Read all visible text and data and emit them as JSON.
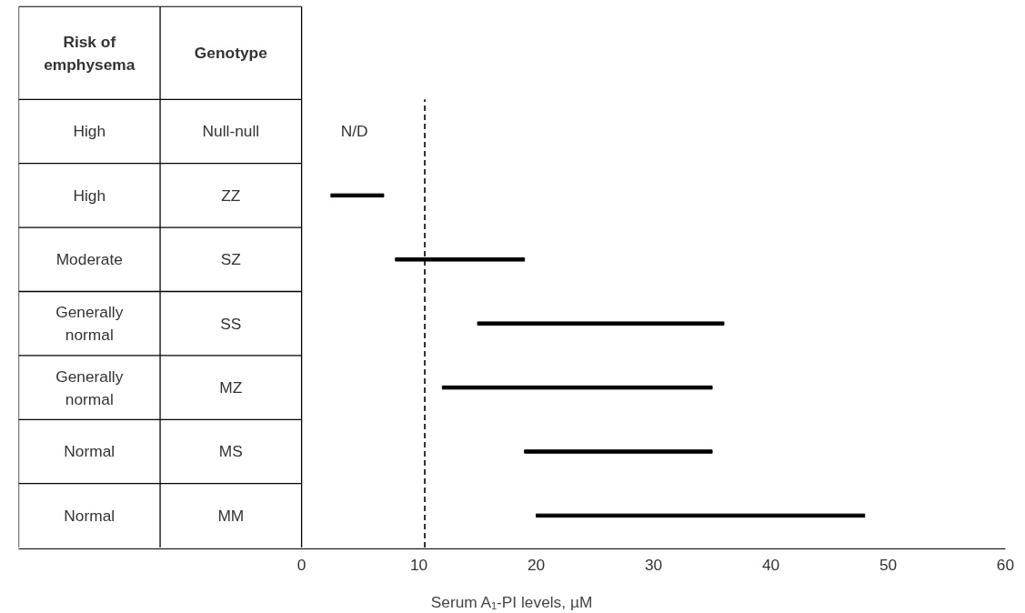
{
  "chart_data": {
    "type": "bar",
    "orientation": "horizontal",
    "xlabel": "Serum A₁-PI levels, µM",
    "ylabel": "Genotype",
    "categories": [
      "Null-null",
      "ZZ",
      "SZ",
      "SS",
      "MZ",
      "MS",
      "MM"
    ],
    "base": [
      null,
      2.5,
      8,
      15,
      12,
      19,
      20
    ],
    "values": [
      null,
      4.5,
      11,
      21,
      23,
      16,
      28
    ],
    "color": "#000000",
    "xlim": [
      0,
      60
    ],
    "xticks": [
      0,
      10,
      20,
      30,
      40,
      50,
      60
    ],
    "ref_lines": [
      {
        "axis": "x",
        "value": 10.5,
        "line_style": "dashed",
        "color": "#000000"
      }
    ],
    "grid": false,
    "annotations": [
      "Risk of emphysema",
      "High",
      "High",
      "Moderate",
      "Generally normal",
      "Generally normal",
      "Normal",
      "Normal",
      "N/D"
    ]
  }
}
